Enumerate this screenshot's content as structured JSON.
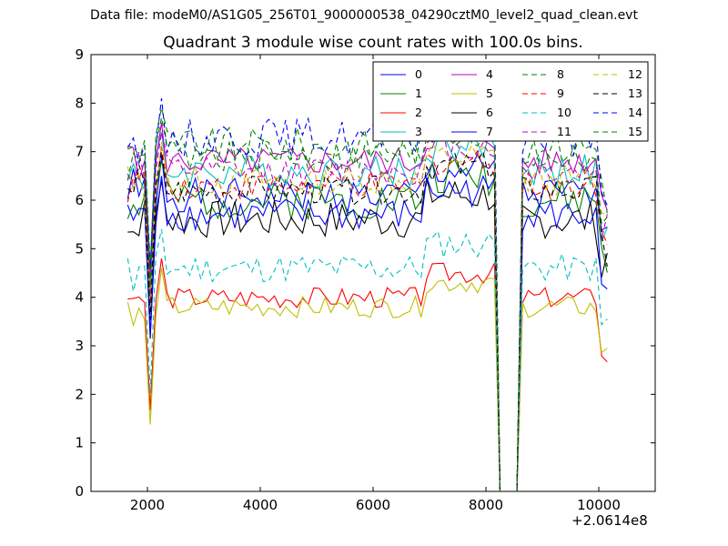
{
  "suptitle": "Data file: modeM0/AS1G05_256T01_9000000538_04290cztM0_level2_quad_clean.evt",
  "chart_data": {
    "type": "line",
    "title": "Quadrant 3 module wise count rates with 100.0s bins.",
    "xlabel": "",
    "ylabel": "",
    "x_offset_label": "+2.0614e8",
    "xlim": [
      1000,
      11000
    ],
    "ylim": [
      0,
      9
    ],
    "xticks": [
      2000,
      4000,
      6000,
      8000,
      10000
    ],
    "yticks": [
      0,
      1,
      2,
      3,
      4,
      5,
      6,
      7,
      8,
      9
    ],
    "grid": false,
    "legend_position": "top-right",
    "x_start": 1650,
    "x_step": 100,
    "gap_range": [
      8200,
      8550
    ],
    "series": [
      {
        "name": "0",
        "color": "#0000ff",
        "dash": "solid",
        "level": 6.1,
        "v": 0.35,
        "seed": 1
      },
      {
        "name": "1",
        "color": "#008000",
        "dash": "solid",
        "level": 6.0,
        "v": 0.4,
        "seed": 2
      },
      {
        "name": "2",
        "color": "#ff0000",
        "dash": "solid",
        "level": 4.0,
        "v": 0.22,
        "seed": 3
      },
      {
        "name": "3",
        "color": "#00bfbf",
        "dash": "solid",
        "level": 6.6,
        "v": 0.35,
        "seed": 4
      },
      {
        "name": "4",
        "color": "#bf00bf",
        "dash": "solid",
        "level": 6.8,
        "v": 0.3,
        "seed": 5
      },
      {
        "name": "5",
        "color": "#bfbf00",
        "dash": "solid",
        "level": 3.8,
        "v": 0.22,
        "seed": 6
      },
      {
        "name": "6",
        "color": "#000000",
        "dash": "solid",
        "level": 5.6,
        "v": 0.4,
        "seed": 7
      },
      {
        "name": "7",
        "color": "#0000ff",
        "dash": "solid",
        "level": 5.7,
        "v": 0.35,
        "seed": 8
      },
      {
        "name": "8",
        "color": "#008000",
        "dash": "dashed",
        "level": 7.1,
        "v": 0.4,
        "seed": 9
      },
      {
        "name": "9",
        "color": "#ff0000",
        "dash": "dashed",
        "level": 6.3,
        "v": 0.3,
        "seed": 10
      },
      {
        "name": "10",
        "color": "#00bfbf",
        "dash": "dashed",
        "level": 4.6,
        "v": 0.3,
        "seed": 11
      },
      {
        "name": "11",
        "color": "#bf00bf",
        "dash": "dashed",
        "level": 6.6,
        "v": 0.3,
        "seed": 12
      },
      {
        "name": "12",
        "color": "#bfbf00",
        "dash": "dashed",
        "level": 6.4,
        "v": 0.3,
        "seed": 13
      },
      {
        "name": "13",
        "color": "#000000",
        "dash": "dashed",
        "level": 6.2,
        "v": 0.3,
        "seed": 14
      },
      {
        "name": "14",
        "color": "#0000ff",
        "dash": "dashed",
        "level": 7.3,
        "v": 0.4,
        "seed": 15
      },
      {
        "name": "15",
        "color": "#008000",
        "dash": "dashed",
        "level": 6.9,
        "v": 0.35,
        "seed": 16
      }
    ]
  }
}
